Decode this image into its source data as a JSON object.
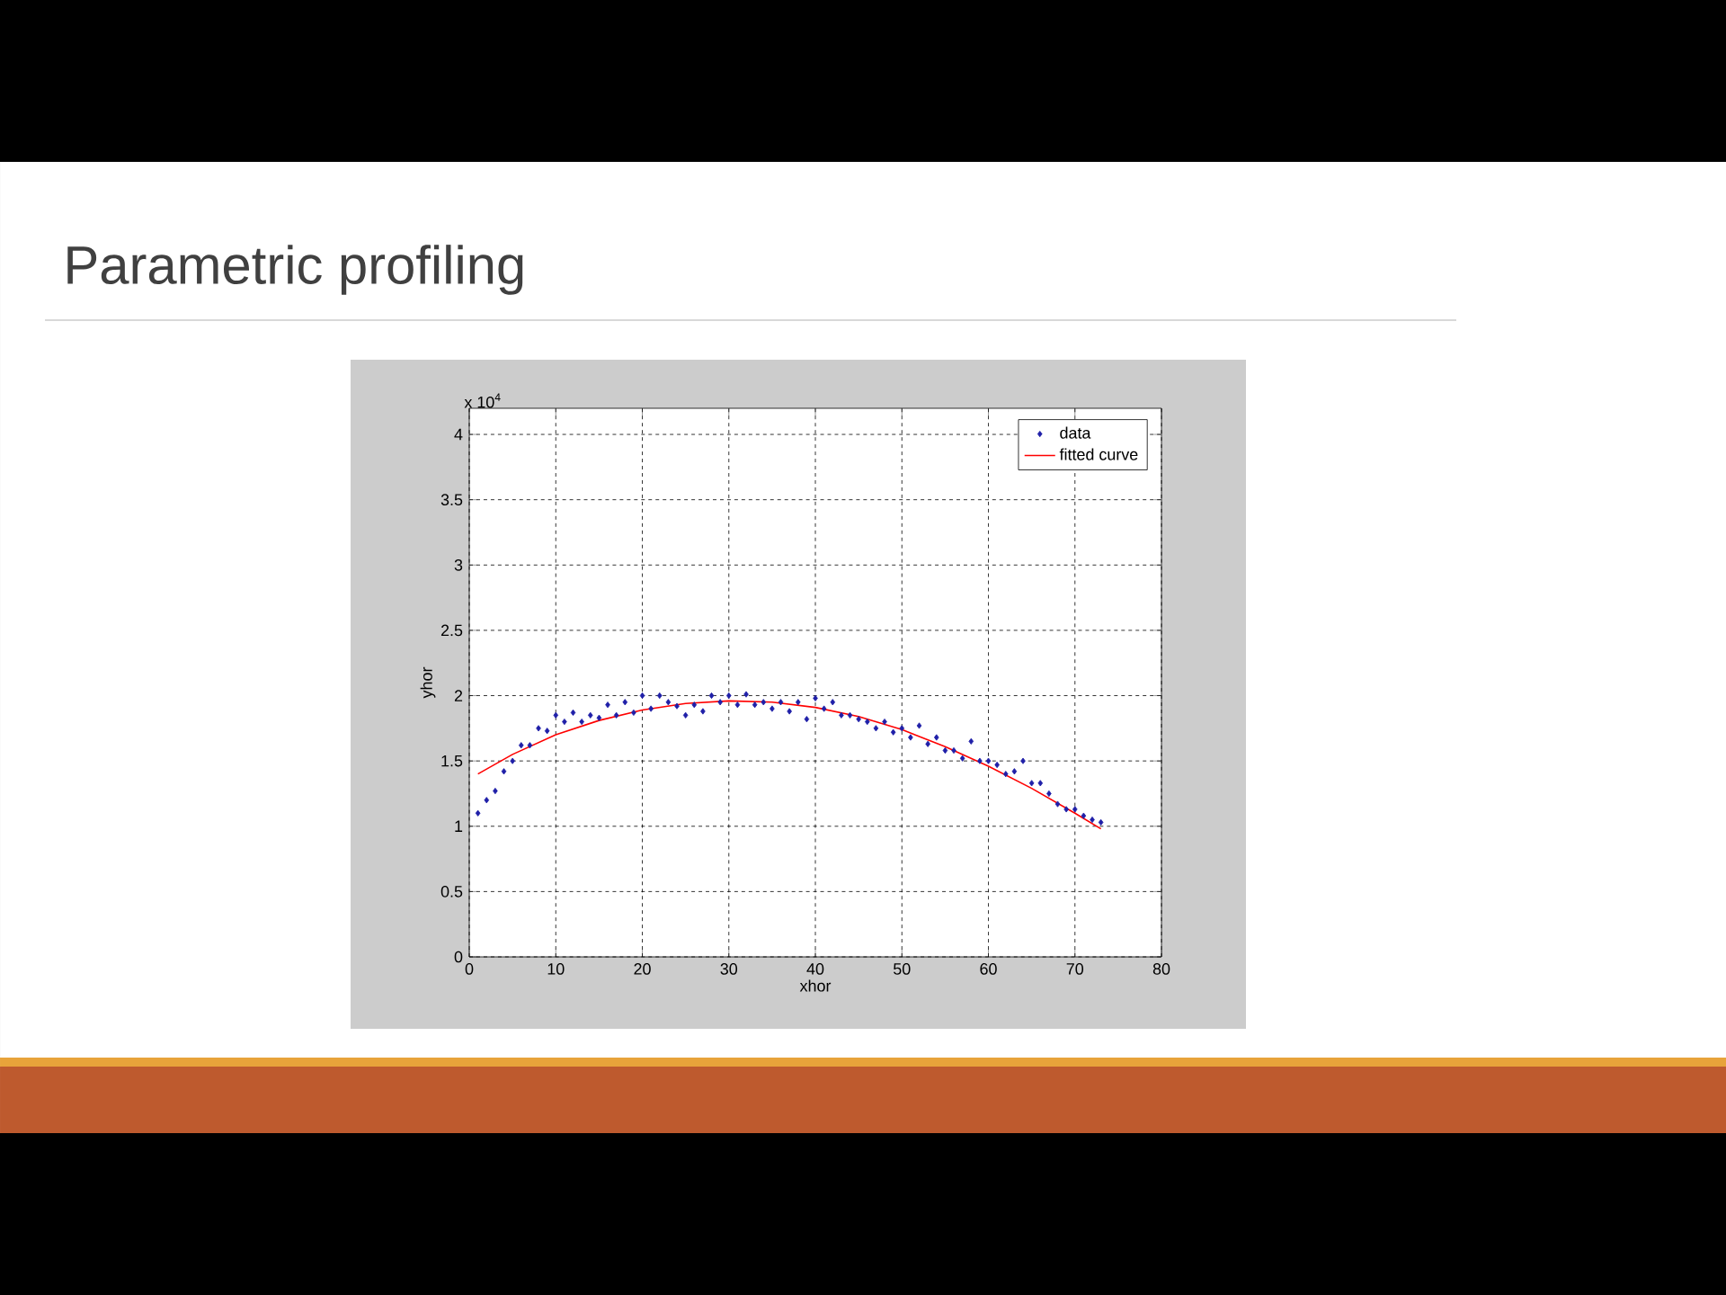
{
  "chart_data": {
    "type": "scatter",
    "title": "Parametric profiling",
    "xlabel": "xhor",
    "ylabel": "yhor",
    "annotations": [
      "x 10$^{4}$"
    ],
    "xlim": [
      0,
      80
    ],
    "xticks": [
      0,
      10,
      20,
      30,
      40,
      50,
      60,
      70,
      80
    ],
    "ylim": [
      0,
      4.2
    ],
    "yticks": [
      0,
      0.5,
      1,
      1.5,
      2,
      2.5,
      3,
      3.5,
      4
    ],
    "grid": true,
    "legend": "top right",
    "series": [
      {
        "name": "data",
        "color": "#1f1fa8",
        "marker": "diamond",
        "x": [
          1,
          2,
          3,
          4,
          5,
          6,
          7,
          8,
          9,
          10,
          11,
          12,
          13,
          14,
          15,
          16,
          17,
          18,
          19,
          20,
          21,
          22,
          23,
          24,
          25,
          26,
          27,
          28,
          29,
          30,
          31,
          32,
          33,
          34,
          35,
          36,
          37,
          38,
          39,
          40,
          41,
          42,
          43,
          44,
          45,
          46,
          47,
          48,
          49,
          50,
          51,
          52,
          53,
          54,
          55,
          56,
          57,
          58,
          59,
          60,
          61,
          62,
          63,
          64,
          65,
          66,
          67,
          68,
          69,
          70,
          71,
          72,
          73
        ],
        "values": [
          1.1,
          1.2,
          1.27,
          1.42,
          1.5,
          1.62,
          1.62,
          1.75,
          1.73,
          1.85,
          1.8,
          1.87,
          1.8,
          1.85,
          1.83,
          1.93,
          1.85,
          1.95,
          1.87,
          2.0,
          1.9,
          2.0,
          1.95,
          1.92,
          1.85,
          1.93,
          1.88,
          2.0,
          1.95,
          2.0,
          1.93,
          2.01,
          1.93,
          1.95,
          1.9,
          1.95,
          1.88,
          1.95,
          1.82,
          1.98,
          1.9,
          1.95,
          1.85,
          1.85,
          1.82,
          1.8,
          1.75,
          1.8,
          1.72,
          1.75,
          1.68,
          1.77,
          1.63,
          1.68,
          1.58,
          1.58,
          1.52,
          1.65,
          1.5,
          1.5,
          1.47,
          1.4,
          1.42,
          1.5,
          1.33,
          1.33,
          1.25,
          1.17,
          1.13,
          1.13,
          1.08,
          1.05,
          1.03
        ]
      },
      {
        "name": "fitted curve",
        "type": "line",
        "color": "#ff0000",
        "marker": "none",
        "x": [
          1,
          5,
          10,
          15,
          20,
          25,
          30,
          35,
          40,
          45,
          50,
          55,
          60,
          65,
          70,
          73
        ],
        "values": [
          1.4,
          1.55,
          1.7,
          1.81,
          1.89,
          1.94,
          1.96,
          1.95,
          1.91,
          1.84,
          1.74,
          1.61,
          1.46,
          1.29,
          1.1,
          0.98
        ]
      }
    ]
  }
}
